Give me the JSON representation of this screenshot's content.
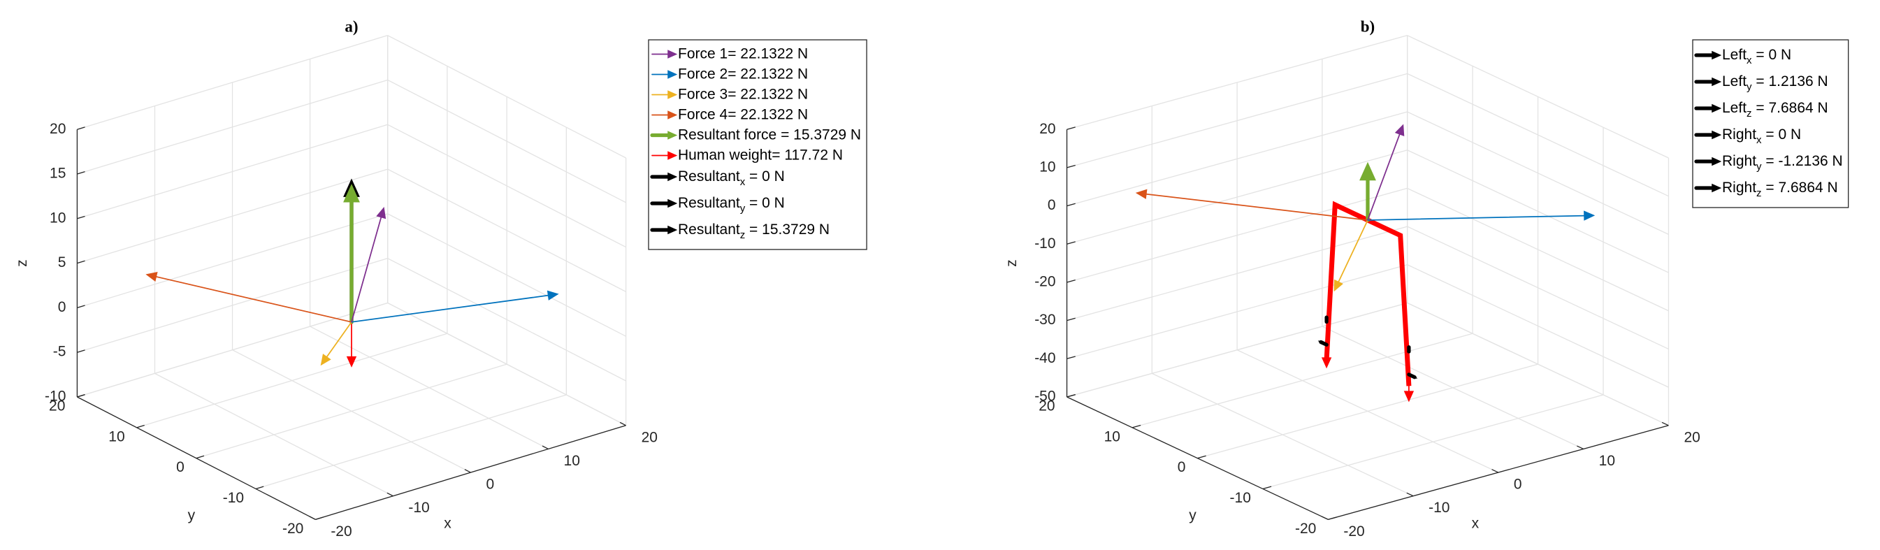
{
  "chart_data": [
    {
      "type": "quiver3d",
      "title": "a)",
      "xlabel": "x",
      "ylabel": "y",
      "zlabel": "z",
      "xlim": [
        -20,
        20
      ],
      "ylim": [
        -20,
        20
      ],
      "zlim": [
        -10,
        20
      ],
      "xticks": [
        -20,
        -10,
        0,
        10,
        20
      ],
      "yticks": [
        -20,
        -10,
        0,
        10,
        20
      ],
      "zticks": [
        -10,
        -5,
        0,
        5,
        10,
        15,
        20
      ],
      "view": {
        "azimuth": -37.5,
        "elevation": 30
      },
      "grid": true,
      "legend_location": "northeastoutside",
      "series": [
        {
          "name": "Force 1= 22.1322 N",
          "color": "#7E2F8E",
          "linewidth": 1,
          "origin": [
            0,
            0,
            0
          ],
          "vector": [
            8,
            5,
            9
          ]
        },
        {
          "name": "Force 2= 22.1322 N",
          "color": "#0072BD",
          "linewidth": 1,
          "origin": [
            0,
            0,
            0
          ],
          "vector": [
            22,
            -6,
            -0.6
          ]
        },
        {
          "name": "Force 3= 22.1322 N",
          "color": "#EDB120",
          "linewidth": 1,
          "origin": [
            0,
            0,
            0
          ],
          "vector": [
            -7,
            -4,
            -1.6
          ]
        },
        {
          "name": "Force 4= 22.1322 N",
          "color": "#D95319",
          "linewidth": 1,
          "origin": [
            0,
            0,
            0
          ],
          "vector": [
            -8,
            24,
            -0.8
          ]
        },
        {
          "name": "Resultant force = 15.3729 N",
          "color": "#77AC30",
          "linewidth": 3,
          "origin": [
            0,
            0,
            0
          ],
          "vector": [
            0,
            0,
            15.4
          ]
        },
        {
          "name": "Human weight= 117.72 N",
          "color": "#FF0000",
          "linewidth": 1,
          "origin": [
            0,
            0,
            0
          ],
          "vector": [
            0,
            0,
            -5
          ]
        },
        {
          "name": "Resultant",
          "subscript": "x",
          "suffix": " = 0 N",
          "color": "#000000",
          "linewidth": 3,
          "origin": [
            0,
            0,
            0
          ],
          "vector": [
            0,
            0,
            0
          ]
        },
        {
          "name": "Resultant",
          "subscript": "y",
          "suffix": " = 0 N",
          "color": "#000000",
          "linewidth": 3,
          "origin": [
            0,
            0,
            0
          ],
          "vector": [
            0,
            0,
            0
          ]
        },
        {
          "name": "Resultant",
          "subscript": "z",
          "suffix": " = 15.3729 N",
          "color": "#000000",
          "linewidth": 3,
          "origin": [
            0,
            0,
            0
          ],
          "vector": [
            0,
            0,
            16
          ]
        }
      ]
    },
    {
      "type": "quiver3d",
      "title": "b)",
      "xlabel": "x",
      "ylabel": "y",
      "zlabel": "z",
      "xlim": [
        -20,
        20
      ],
      "ylim": [
        -20,
        20
      ],
      "zlim": [
        -50,
        20
      ],
      "xticks": [
        -20,
        -10,
        0,
        10,
        20
      ],
      "yticks": [
        -20,
        -10,
        0,
        10,
        20
      ],
      "zticks": [
        -50,
        -40,
        -30,
        -20,
        -10,
        0,
        10,
        20
      ],
      "view": {
        "azimuth": -37.5,
        "elevation": 30
      },
      "grid": true,
      "legend_location": "northeastoutside",
      "lines": [
        {
          "color": "#FF0000",
          "linewidth": 4,
          "x": [
            -1,
            0,
            0,
            1
          ],
          "y": [
            5,
            5,
            -5,
            -5
          ],
          "z": [
            -40,
            0,
            0,
            -40
          ]
        }
      ],
      "series": [
        {
          "name": "Left",
          "subscript": "x",
          "suffix": " = 0 N",
          "color": "#000000",
          "linewidth": 3,
          "origin": [
            -1,
            5,
            -29
          ],
          "vector": [
            0,
            0,
            0
          ]
        },
        {
          "name": "Left",
          "subscript": "y",
          "suffix": " = 1.2136 N",
          "color": "#000000",
          "linewidth": 3,
          "origin": [
            -1,
            5,
            -36
          ],
          "vector": [
            0,
            1.2,
            0
          ]
        },
        {
          "name": "Left",
          "subscript": "z",
          "suffix": " = 7.6864 N",
          "color": "#000000",
          "linewidth": 3,
          "origin": [
            -1,
            5,
            -30
          ],
          "vector": [
            0,
            0,
            1.5
          ]
        },
        {
          "name": "Right",
          "subscript": "x",
          "suffix": " = 0 N",
          "color": "#000000",
          "linewidth": 3,
          "origin": [
            1,
            -5,
            -31
          ],
          "vector": [
            0,
            0,
            0
          ]
        },
        {
          "name": "Right",
          "subscript": "y",
          "suffix": " = -1.2136 N",
          "color": "#000000",
          "linewidth": 3,
          "origin": [
            1,
            -5,
            -37
          ],
          "vector": [
            0,
            -1.2,
            0
          ]
        },
        {
          "name": "Right",
          "subscript": "z",
          "suffix": " = 7.6864 N",
          "color": "#000000",
          "linewidth": 3,
          "origin": [
            1,
            -5,
            -31
          ],
          "vector": [
            0,
            0,
            1.5
          ]
        },
        {
          "color": "#7E2F8E",
          "linewidth": 1,
          "origin": [
            0,
            0,
            0
          ],
          "vector": [
            8,
            5,
            16
          ]
        },
        {
          "color": "#0072BD",
          "linewidth": 1,
          "origin": [
            0,
            0,
            0
          ],
          "vector": [
            22,
            -6,
            -7.5
          ]
        },
        {
          "color": "#EDB120",
          "linewidth": 1,
          "origin": [
            0,
            0,
            0
          ],
          "vector": [
            -7,
            -4,
            -11
          ]
        },
        {
          "color": "#D95319",
          "linewidth": 1,
          "origin": [
            0,
            0,
            0
          ],
          "vector": [
            -8,
            25,
            -8
          ]
        },
        {
          "color": "#77AC30",
          "linewidth": 3,
          "origin": [
            0,
            0,
            0
          ],
          "vector": [
            0,
            0,
            15
          ]
        },
        {
          "color": "#FF0000",
          "linewidth": 1,
          "origin": [
            -1,
            5,
            -34
          ],
          "vector": [
            0,
            0,
            -8
          ]
        },
        {
          "color": "#FF0000",
          "linewidth": 1,
          "origin": [
            1,
            -5,
            -34
          ],
          "vector": [
            0,
            0,
            -10
          ]
        }
      ]
    }
  ]
}
